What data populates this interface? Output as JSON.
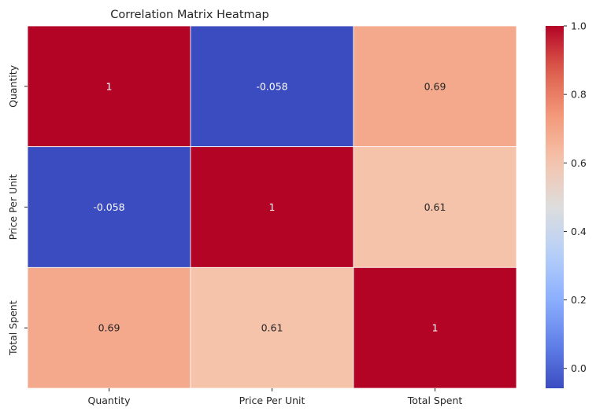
{
  "chart_data": {
    "type": "heatmap",
    "title": "Correlation Matrix Heatmap",
    "xlabel": "",
    "ylabel": "",
    "x_categories": [
      "Quantity",
      "Price Per Unit",
      "Total Spent"
    ],
    "y_categories": [
      "Quantity",
      "Price Per Unit",
      "Total Spent"
    ],
    "values": [
      [
        1,
        -0.058,
        0.69
      ],
      [
        -0.058,
        1,
        0.61
      ],
      [
        0.69,
        0.61,
        1
      ]
    ],
    "annotations": [
      [
        "1",
        "-0.058",
        "0.69"
      ],
      [
        "-0.058",
        "1",
        "0.61"
      ],
      [
        "0.69",
        "0.61",
        "1"
      ]
    ],
    "colormap": "coolwarm",
    "color_range": [
      -0.058,
      1
    ],
    "colorbar_ticks": [
      0.0,
      0.2,
      0.4,
      0.6,
      0.8,
      1.0
    ],
    "colorbar_tick_labels": [
      "0.0",
      "0.2",
      "0.4",
      "0.6",
      "0.8",
      "1.0"
    ],
    "cell_border_color": "#ffffff",
    "annotation_text_color": "#262626",
    "annotation_text_color_light": "#ffffff",
    "grid": false,
    "legend": "colorbar-right"
  }
}
